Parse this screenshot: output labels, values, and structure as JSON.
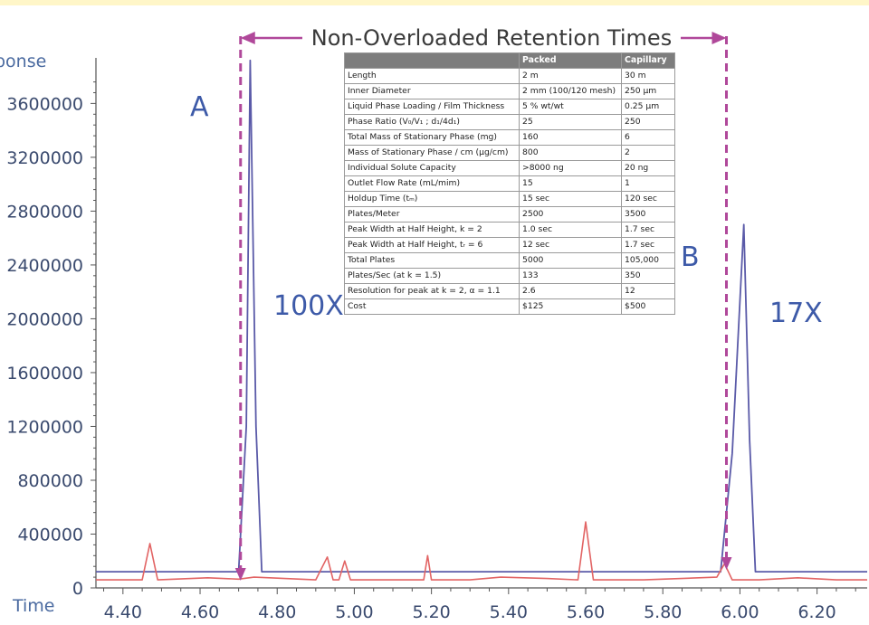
{
  "chart_data": {
    "type": "line",
    "ylabel": "ponse",
    "xlabel": "Time",
    "xlim": [
      4.33,
      6.33
    ],
    "ylim": [
      0,
      4100000
    ],
    "y_ticks": [
      "0",
      "400000",
      "800000",
      "1200000",
      "1600000",
      "2000000",
      "2400000",
      "2800000",
      "3200000",
      "3600000"
    ],
    "y_tick_values": [
      0,
      400000,
      800000,
      1200000,
      1600000,
      2000000,
      2400000,
      2800000,
      3200000,
      3600000
    ],
    "x_ticks": [
      "4.40",
      "4.60",
      "4.80",
      "5.00",
      "5.20",
      "5.40",
      "5.60",
      "5.80",
      "6.00",
      "6.20"
    ],
    "x_tick_values": [
      4.4,
      4.6,
      4.8,
      5.0,
      5.2,
      5.4,
      5.6,
      5.8,
      6.0,
      6.2
    ],
    "series": [
      {
        "color": "#5a5aa8",
        "x": [
          4.33,
          4.7,
          4.72,
          4.73,
          4.745,
          4.76,
          5.95,
          5.98,
          6.01,
          6.025,
          6.04,
          6.33
        ],
        "y": [
          120000,
          120000,
          1200000,
          3920000,
          1200000,
          120000,
          120000,
          1000000,
          2700000,
          1100000,
          120000,
          120000
        ]
      },
      {
        "color": "#e26464",
        "x": [
          4.33,
          4.45,
          4.47,
          4.49,
          4.62,
          4.7,
          4.74,
          4.9,
          4.93,
          4.945,
          4.96,
          4.975,
          4.99,
          5.01,
          5.1,
          5.18,
          5.19,
          5.2,
          5.3,
          5.38,
          5.5,
          5.58,
          5.6,
          5.62,
          5.75,
          5.94,
          5.96,
          5.98,
          6.05,
          6.15,
          6.25,
          6.33
        ],
        "y": [
          60000,
          60000,
          330000,
          60000,
          75000,
          65000,
          80000,
          60000,
          230000,
          60000,
          60000,
          200000,
          60000,
          60000,
          60000,
          60000,
          240000,
          60000,
          60000,
          80000,
          70000,
          60000,
          490000,
          60000,
          60000,
          80000,
          180000,
          60000,
          60000,
          75000,
          60000,
          60000
        ]
      }
    ],
    "annotations": {
      "banner": "Non-Overloaded Retention Times",
      "peak_a": "A",
      "peak_b": "B",
      "mult_a": "100X",
      "mult_b": "17X",
      "retention_a": 4.705,
      "retention_b": 5.965
    },
    "table": {
      "headers": [
        "",
        "Packed",
        "Capillary"
      ],
      "rows": [
        [
          "Length",
          "2 m",
          "30 m"
        ],
        [
          "Inner Diameter",
          "2 mm (100/120 mesh)",
          "250 μm"
        ],
        [
          "Liquid Phase Loading / Film Thickness",
          "5 % wt/wt",
          "0.25 μm"
        ],
        [
          "Phase Ratio (V₀/V₁ ; d₁/4d₁)",
          "25",
          "250"
        ],
        [
          "Total Mass of Stationary Phase (mg)",
          "160",
          "6"
        ],
        [
          "Mass of Stationary Phase / cm (μg/cm)",
          "800",
          "2"
        ],
        [
          "Individual Solute Capacity",
          ">8000 ng",
          "20 ng"
        ],
        [
          "Outlet Flow Rate (mL/mim)",
          "15",
          "1"
        ],
        [
          "Holdup Time (tₘ)",
          "15 sec",
          "120 sec"
        ],
        [
          "Plates/Meter",
          "2500",
          "3500"
        ],
        [
          "Peak Width at Half Height, k = 2",
          "1.0 sec",
          "1.7 sec"
        ],
        [
          "Peak Width at Half Height, tᵣ = 6",
          "12 sec",
          "1.7 sec"
        ],
        [
          "Total Plates",
          "5000",
          "105,000"
        ],
        [
          "Plates/Sec (at k = 1.5)",
          "133",
          "350"
        ],
        [
          "Resolution for peak at k = 2, α = 1.1",
          "2.6",
          "12"
        ],
        [
          "Cost",
          "$125",
          "$500"
        ]
      ]
    },
    "colors": {
      "blue_trace": "#5a5aa8",
      "red_trace": "#e26464",
      "annotation": "#b0489a",
      "axis": "#555555"
    }
  }
}
